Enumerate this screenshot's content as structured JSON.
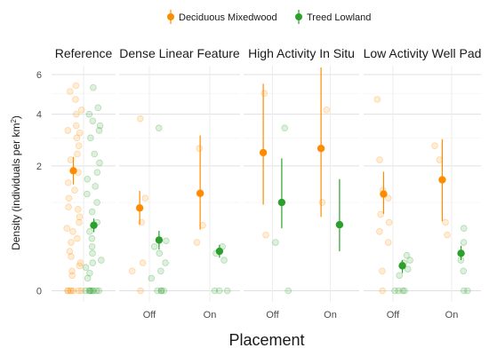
{
  "chart_data": {
    "type": "scatter",
    "xlabel": "Placement",
    "ylabel": "Density (individuals per km²)",
    "y_ticks": [
      0,
      2,
      4,
      6
    ],
    "y_scale": "sqrt",
    "ylim": [
      0,
      6.5
    ],
    "legend": {
      "position": "top",
      "entries": [
        {
          "name": "Deciduous Mixedwood",
          "color": "#FF8C00"
        },
        {
          "name": "Treed Lowland",
          "color": "#2CA02C"
        }
      ]
    },
    "panels": [
      {
        "title": "Reference",
        "categories": [
          ""
        ],
        "series": [
          {
            "name": "Deciduous Mixedwood",
            "points": [
              {
                "x": "",
                "y": 1.85,
                "lo": 1.45,
                "hi": 2.3
              }
            ]
          },
          {
            "name": "Treed Lowland",
            "points": [
              {
                "x": "",
                "y": 0.55,
                "lo": 0.44,
                "hi": 0.67
              }
            ]
          }
        ],
        "raw": [
          {
            "series": "Deciduous Mixedwood",
            "x": "",
            "values": [
              5.4,
              5.1,
              4.7,
              4.2,
              4.0,
              3.5,
              3.3,
              3.2,
              3.0,
              2.7,
              2.4,
              2.2,
              1.8,
              1.5,
              1.3,
              1.1,
              0.9,
              0.85,
              0.7,
              0.6,
              0.5,
              0.45,
              0.35,
              0.3,
              0.2,
              0.15,
              0.1,
              0.08,
              0.05,
              0.03,
              0,
              0,
              0,
              0,
              0,
              0,
              0
            ]
          },
          {
            "series": "Treed Lowland",
            "x": "",
            "values": [
              5.3,
              4.3,
              4.0,
              3.7,
              3.5,
              3.3,
              3.0,
              2.4,
              2.1,
              1.8,
              1.6,
              1.4,
              1.2,
              1.0,
              0.8,
              0.6,
              0.45,
              0.35,
              0.25,
              0.18,
              0.12,
              0.1,
              0.07,
              0.04,
              0.02,
              0,
              0,
              0,
              0,
              0,
              0,
              0,
              0
            ]
          }
        ]
      },
      {
        "title": "Dense Linear Feature",
        "categories": [
          "Off",
          "On"
        ],
        "series": [
          {
            "name": "Deciduous Mixedwood",
            "points": [
              {
                "x": "Off",
                "y": 0.88,
                "lo": 0.56,
                "hi": 1.28
              },
              {
                "x": "On",
                "y": 1.22,
                "lo": 0.48,
                "hi": 3.1
              }
            ]
          },
          {
            "name": "Treed Lowland",
            "points": [
              {
                "x": "Off",
                "y": 0.33,
                "lo": 0.22,
                "hi": 0.46
              },
              {
                "x": "On",
                "y": 0.2,
                "lo": 0.14,
                "hi": 0.27
              }
            ]
          }
        ],
        "raw": [
          {
            "series": "Deciduous Mixedwood",
            "x": "Off",
            "values": [
              3.8,
              1.1,
              0.6,
              0.1,
              0.05,
              0
            ]
          },
          {
            "series": "Deciduous Mixedwood",
            "x": "On",
            "values": [
              2.6,
              1.2,
              0.55,
              0.3
            ]
          },
          {
            "series": "Treed Lowland",
            "x": "Off",
            "values": [
              3.4,
              0.32,
              0.25,
              0.18,
              0.1,
              0.05,
              0.02,
              0,
              0,
              0,
              0
            ]
          },
          {
            "series": "Treed Lowland",
            "x": "On",
            "values": [
              0.25,
              0.18,
              0.12,
              0,
              0,
              0
            ]
          }
        ]
      },
      {
        "title": "High Activity In Situ",
        "categories": [
          "Off",
          "On"
        ],
        "series": [
          {
            "name": "Deciduous Mixedwood",
            "points": [
              {
                "x": "Off",
                "y": 2.45,
                "lo": 0.95,
                "hi": 5.5
              },
              {
                "x": "On",
                "y": 2.6,
                "lo": 0.7,
                "hi": 6.4
              }
            ]
          },
          {
            "name": "Treed Lowland",
            "points": [
              {
                "x": "Off",
                "y": 1.0,
                "lo": 0.5,
                "hi": 2.25
              },
              {
                "x": "On",
                "y": 0.56,
                "lo": 0.2,
                "hi": 1.6
              }
            ]
          }
        ],
        "raw": [
          {
            "series": "Deciduous Mixedwood",
            "x": "Off",
            "values": [
              5.0,
              0.4
            ]
          },
          {
            "series": "Deciduous Mixedwood",
            "x": "On",
            "values": [
              4.2,
              1.0
            ]
          },
          {
            "series": "Treed Lowland",
            "x": "Off",
            "values": [
              3.4,
              0.3,
              0
            ]
          },
          {
            "series": "Treed Lowland",
            "x": "On",
            "values": []
          }
        ]
      },
      {
        "title": "Low Activity Well Pad",
        "categories": [
          "Off",
          "On"
        ],
        "series": [
          {
            "name": "Deciduous Mixedwood",
            "points": [
              {
                "x": "Off",
                "y": 1.2,
                "lo": 0.76,
                "hi": 1.82
              },
              {
                "x": "On",
                "y": 1.58,
                "lo": 0.62,
                "hi": 2.95
              }
            ]
          },
          {
            "name": "Treed Lowland",
            "points": [
              {
                "x": "Off",
                "y": 0.08,
                "lo": 0.04,
                "hi": 0.12
              },
              {
                "x": "On",
                "y": 0.18,
                "lo": 0.12,
                "hi": 0.26
              }
            ]
          }
        ],
        "raw": [
          {
            "series": "Deciduous Mixedwood",
            "x": "Off",
            "values": [
              4.7,
              2.2,
              1.3,
              1.1,
              0.75,
              0.6,
              0.45,
              0.3,
              0.05,
              0
            ]
          },
          {
            "series": "Deciduous Mixedwood",
            "x": "On",
            "values": [
              2.7,
              2.2,
              0.6,
              0.4
            ]
          },
          {
            "series": "Treed Lowland",
            "x": "Off",
            "values": [
              0.16,
              0.12,
              0.1,
              0.06,
              0.03,
              0,
              0,
              0,
              0
            ]
          },
          {
            "series": "Treed Lowland",
            "x": "On",
            "values": [
              0.5,
              0.3,
              0.12,
              0.05,
              0,
              0
            ]
          }
        ]
      }
    ]
  }
}
